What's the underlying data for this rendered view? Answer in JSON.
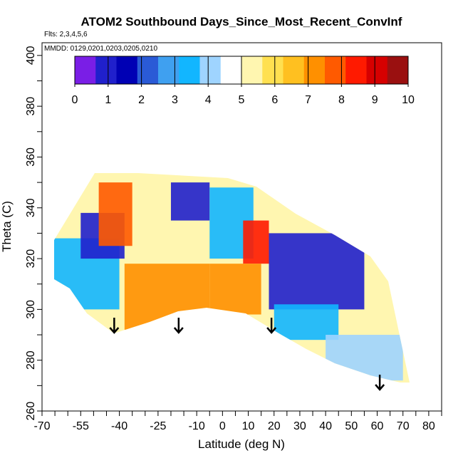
{
  "chart_data": {
    "type": "heatmap",
    "title": "ATOM2 Southbound Days_Since_Most_Recent_ConvInf",
    "flights_note": "Flts: 2,3,4,5,6",
    "dates_note": "MMDD: 0129,0201,0203,0205,0210",
    "xlabel": "Latitude (deg N)",
    "ylabel": "Theta (C)",
    "xlim": [
      -70,
      85
    ],
    "ylim": [
      260,
      405
    ],
    "x_tick_labels": [
      "-70",
      "-55",
      "-40",
      "-25",
      "-10",
      "0",
      "10",
      "20",
      "30",
      "40",
      "50",
      "60",
      "70",
      "80"
    ],
    "x_tick_values": [
      -70,
      -55,
      -40,
      -25,
      -10,
      0,
      10,
      20,
      30,
      40,
      50,
      60,
      70,
      80
    ],
    "y_tick_labels": [
      "260",
      "280",
      "300",
      "320",
      "340",
      "360",
      "380",
      "400"
    ],
    "y_tick_values": [
      260,
      280,
      300,
      320,
      340,
      360,
      380,
      400
    ],
    "colorbar": {
      "min": 0,
      "max": 10,
      "tick_labels": [
        "0",
        "1",
        "2",
        "3",
        "4",
        "5",
        "6",
        "7",
        "8",
        "9",
        "10"
      ],
      "colors": [
        "#7a1ee6",
        "#2020cc",
        "#0000b4",
        "#2a5ad6",
        "#3fa0f0",
        "#12b6ff",
        "#9fd4ff",
        "#ffffff",
        "#fff6b0",
        "#ffe050",
        "#ffc020",
        "#ff9000",
        "#ff5a00",
        "#ff1a00",
        "#d60000",
        "#9a1010"
      ]
    },
    "arrows_at_latitude": [
      -42,
      -17,
      19,
      61
    ],
    "regions": [
      {
        "lat": [
          -67,
          -40
        ],
        "theta": [
          300,
          328
        ],
        "days": 3.5
      },
      {
        "lat": [
          -55,
          -38
        ],
        "theta": [
          320,
          338
        ],
        "days": 1.0
      },
      {
        "lat": [
          -48,
          -35
        ],
        "theta": [
          325,
          350
        ],
        "days": 8.0
      },
      {
        "lat": [
          -38,
          -5
        ],
        "theta": [
          292,
          318
        ],
        "days": 7.2
      },
      {
        "lat": [
          -20,
          -5
        ],
        "theta": [
          335,
          350
        ],
        "days": 0.8
      },
      {
        "lat": [
          -5,
          12
        ],
        "theta": [
          320,
          348
        ],
        "days": 3.2
      },
      {
        "lat": [
          8,
          18
        ],
        "theta": [
          318,
          335
        ],
        "days": 8.6
      },
      {
        "lat": [
          -5,
          15
        ],
        "theta": [
          298,
          318
        ],
        "days": 7.4
      },
      {
        "lat": [
          18,
          55
        ],
        "theta": [
          300,
          330
        ],
        "days": 1.2
      },
      {
        "lat": [
          20,
          45
        ],
        "theta": [
          288,
          302
        ],
        "days": 3.6
      },
      {
        "lat": [
          40,
          70
        ],
        "theta": [
          272,
          290
        ],
        "days": 3.8
      }
    ]
  }
}
